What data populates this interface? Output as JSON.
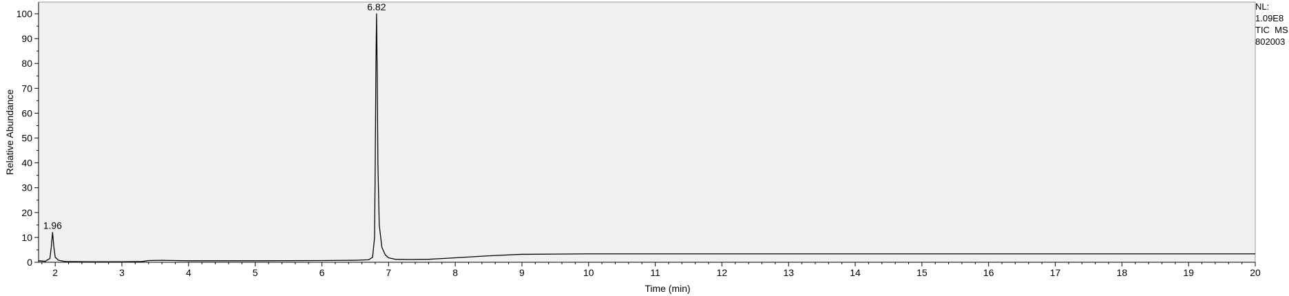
{
  "chart_data": {
    "type": "line",
    "title": "",
    "xlabel": "Time (min)",
    "ylabel": "Relative Abundance",
    "xlim": [
      1.75,
      20.0
    ],
    "ylim": [
      0,
      100
    ],
    "x_ticks": [
      2,
      3,
      4,
      5,
      6,
      7,
      8,
      9,
      10,
      11,
      12,
      13,
      14,
      15,
      16,
      17,
      18,
      19,
      20
    ],
    "x_tick_labels": [
      "2",
      "3",
      "4",
      "5",
      "6",
      "7",
      "8",
      "9",
      "10",
      "11",
      "12",
      "13",
      "14",
      "15",
      "16",
      "17",
      "18",
      "19",
      "20"
    ],
    "y_ticks": [
      0,
      10,
      20,
      30,
      40,
      50,
      60,
      70,
      80,
      90,
      100
    ],
    "y_tick_labels": [
      "0",
      "10",
      "20",
      "30",
      "40",
      "50",
      "60",
      "70",
      "80",
      "90",
      "100"
    ],
    "grid": false,
    "plot_background": "#f0f0f0",
    "line_color": "#000000",
    "series": [
      {
        "x": [
          1.75,
          1.85,
          1.92,
          1.94,
          1.96,
          1.98,
          2.0,
          2.05,
          2.15,
          2.5,
          3.0,
          3.3,
          3.4,
          3.6,
          3.8,
          4.0,
          5.0,
          6.0,
          6.5,
          6.7,
          6.76,
          6.79,
          6.8,
          6.81,
          6.82,
          6.83,
          6.84,
          6.86,
          6.9,
          6.95,
          7.0,
          7.1,
          7.3,
          7.6,
          8.0,
          8.5,
          9.0,
          9.5,
          10.0,
          11.0,
          12.0,
          13.0,
          14.0,
          15.0,
          16.0,
          17.0,
          18.0,
          19.0,
          20.0
        ],
        "y": [
          0.6,
          0.4,
          1.5,
          6.0,
          12.0,
          6.0,
          2.0,
          0.8,
          0.3,
          0.2,
          0.2,
          0.3,
          0.7,
          0.8,
          0.7,
          0.6,
          0.6,
          0.7,
          0.8,
          1.0,
          2.0,
          10.0,
          40.0,
          78.0,
          100.0,
          75.0,
          40.0,
          15.0,
          6.0,
          3.0,
          1.8,
          1.2,
          1.1,
          1.2,
          1.8,
          2.6,
          3.2,
          3.3,
          3.4,
          3.4,
          3.4,
          3.4,
          3.4,
          3.4,
          3.4,
          3.4,
          3.4,
          3.4,
          3.4
        ]
      }
    ],
    "peak_labels": [
      {
        "x": 1.96,
        "y": 12.0,
        "text": "1.96"
      },
      {
        "x": 6.82,
        "y": 100.0,
        "text": "6.82"
      }
    ]
  },
  "info_box": {
    "line1": "NL:",
    "line2": "1.09E8",
    "line3": "TIC  MS",
    "line4": "802003"
  }
}
